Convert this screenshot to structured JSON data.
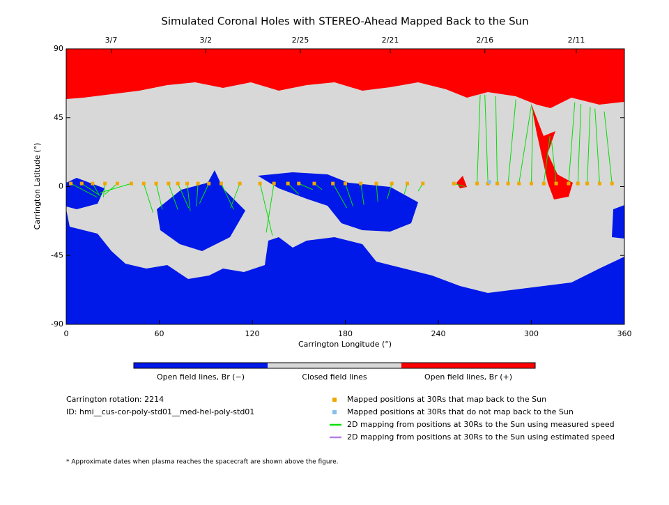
{
  "chart_data": {
    "type": "scatter",
    "title": "Simulated Coronal Holes with STEREO-Ahead Mapped Back to the Sun",
    "xlabel": "Carrington Longitude (°)",
    "ylabel": "Carrington Latitude (°)",
    "xlim": [
      0,
      360
    ],
    "ylim": [
      -90,
      90
    ],
    "xticks": [
      0,
      60,
      120,
      180,
      240,
      300,
      360
    ],
    "yticks": [
      -90,
      -45,
      0,
      45,
      90
    ],
    "top_ticks": [
      {
        "value": 29,
        "label": "3/7"
      },
      {
        "value": 90,
        "label": "3/2"
      },
      {
        "value": 151,
        "label": "2/25"
      },
      {
        "value": 209,
        "label": "2/21"
      },
      {
        "value": 270,
        "label": "2/16"
      },
      {
        "value": 329,
        "label": "2/11"
      }
    ],
    "colorbar": [
      {
        "name": "Open field lines, Br (−)",
        "color": "#0018e8"
      },
      {
        "name": "Closed field lines",
        "color": "#d8d8d8"
      },
      {
        "name": "Open field lines, Br (+)",
        "color": "#ff0000"
      }
    ],
    "info": [
      "Carrington rotation: 2214",
      "ID: hmi__cus-cor-poly-std01__med-hel-poly-std01"
    ],
    "mapped": {
      "name": "Mapped positions at 30Rs that map back to the Sun",
      "color": "#f0a800",
      "x": [
        3,
        10,
        17,
        25,
        33,
        42,
        50,
        58,
        66,
        72,
        78,
        85,
        92,
        100,
        112,
        125,
        134,
        143,
        150,
        160,
        172,
        180,
        190,
        200,
        210,
        220,
        230,
        250,
        265,
        272,
        278,
        285,
        292,
        300,
        308,
        316,
        324,
        330,
        336,
        344,
        352
      ],
      "y": [
        2,
        2,
        2,
        2,
        2,
        2,
        2,
        2,
        2,
        2,
        2,
        2,
        2,
        2,
        2,
        2,
        2,
        2,
        2,
        2,
        2,
        2,
        2,
        2,
        2,
        2,
        2,
        2,
        2,
        2,
        2,
        2,
        2,
        2,
        2,
        2,
        2,
        2,
        2,
        2,
        2
      ]
    },
    "unmapped": {
      "name": "Mapped positions at 30Rs that do not map back to the Sun",
      "color": "#88c0f0",
      "x": [
        273
      ],
      "y": [
        3
      ]
    },
    "mapping_lines": {
      "name": "2D mapping from positions at 30Rs to the Sun using measured speed",
      "color": "#00e000",
      "x_sun": [
        20,
        22,
        21,
        24,
        25,
        22,
        56,
        62,
        72,
        79,
        80,
        84,
        86,
        108,
        106,
        133,
        129,
        150,
        159,
        165,
        181,
        185,
        192,
        201,
        207,
        218,
        227,
        257,
        267,
        270,
        277,
        290,
        300,
        301,
        312,
        313,
        328,
        332,
        338,
        341,
        347
      ],
      "y_sun": [
        -7,
        -6,
        -5,
        -7,
        -5,
        -4,
        -17,
        -15,
        -15,
        -14,
        -16,
        -13,
        -11,
        -15,
        -14,
        -32,
        -30,
        -5,
        -2,
        -2,
        -14,
        -13,
        -12,
        -10,
        -8,
        -5,
        -3,
        0,
        60,
        60,
        59,
        57,
        53,
        50,
        33,
        30,
        55,
        54,
        52,
        51,
        49
      ]
    },
    "estimated_lines": {
      "name": "2D mapping from positions at 30Rs to the Sun using estimated speed",
      "color": "#b080e8"
    },
    "footnote": "* Approximate dates when plasma reaches the spacecraft are shown above the figure."
  }
}
